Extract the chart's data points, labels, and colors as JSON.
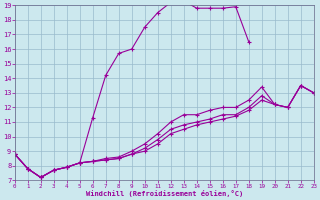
{
  "xlabel": "Windchill (Refroidissement éolien,°C)",
  "bg_color": "#cce8ee",
  "line_color": "#990099",
  "grid_color": "#99bbcc",
  "x_min": 0,
  "x_max": 23,
  "y_min": 7,
  "y_max": 19,
  "series1_x": [
    0,
    1,
    2,
    3,
    4,
    5,
    6,
    7,
    8,
    9,
    10,
    11,
    12,
    13,
    14,
    15,
    16,
    17,
    18
  ],
  "series1_y": [
    8.8,
    7.8,
    7.2,
    7.7,
    7.9,
    8.2,
    11.3,
    14.2,
    15.7,
    16.0,
    17.5,
    18.5,
    19.2,
    19.3,
    18.8,
    18.8,
    18.8,
    18.9,
    16.5
  ],
  "series2_x": [
    0,
    1,
    2,
    3,
    4,
    5,
    6,
    7,
    8,
    9,
    10,
    11,
    12,
    13,
    14,
    15,
    16,
    17,
    18,
    19,
    20,
    21,
    22,
    23
  ],
  "series2_y": [
    8.8,
    7.8,
    7.2,
    7.7,
    7.9,
    8.2,
    8.3,
    8.5,
    8.6,
    9.0,
    9.5,
    10.2,
    11.0,
    11.5,
    11.5,
    11.8,
    12.0,
    12.0,
    12.5,
    13.4,
    12.2,
    12.0,
    13.5,
    13.0
  ],
  "series3_x": [
    0,
    1,
    2,
    3,
    4,
    5,
    6,
    7,
    8,
    9,
    10,
    11,
    12,
    13,
    14,
    15,
    16,
    17,
    18,
    19,
    20,
    21,
    22,
    23
  ],
  "series3_y": [
    8.8,
    7.8,
    7.2,
    7.7,
    7.9,
    8.2,
    8.3,
    8.4,
    8.5,
    8.8,
    9.2,
    9.8,
    10.5,
    10.8,
    11.0,
    11.2,
    11.5,
    11.5,
    12.0,
    12.8,
    12.2,
    12.0,
    13.5,
    13.0
  ],
  "series4_x": [
    0,
    1,
    2,
    3,
    4,
    5,
    6,
    7,
    8,
    9,
    10,
    11,
    12,
    13,
    14,
    15,
    16,
    17,
    18,
    19,
    20,
    21,
    22,
    23
  ],
  "series4_y": [
    8.8,
    7.8,
    7.2,
    7.7,
    7.9,
    8.2,
    8.3,
    8.4,
    8.5,
    8.8,
    9.0,
    9.5,
    10.2,
    10.5,
    10.8,
    11.0,
    11.2,
    11.4,
    11.8,
    12.5,
    12.2,
    12.0,
    13.5,
    13.0
  ],
  "yticks": [
    7,
    8,
    9,
    10,
    11,
    12,
    13,
    14,
    15,
    16,
    17,
    18,
    19
  ],
  "xticks": [
    0,
    1,
    2,
    3,
    4,
    5,
    6,
    7,
    8,
    9,
    10,
    11,
    12,
    13,
    14,
    15,
    16,
    17,
    18,
    19,
    20,
    21,
    22,
    23
  ]
}
